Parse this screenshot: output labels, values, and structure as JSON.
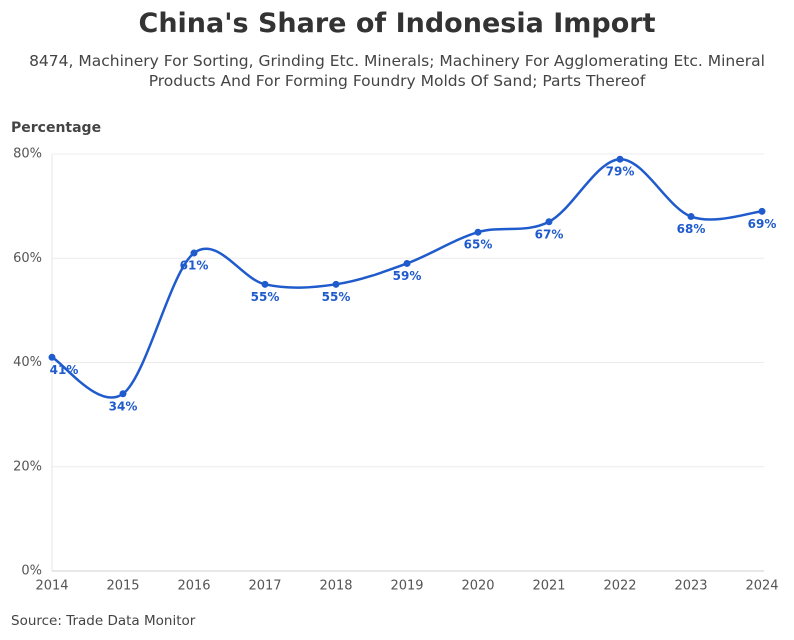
{
  "chart_data": {
    "type": "line",
    "title": "China's Share of Indonesia Import",
    "subtitle": "8474, Machinery For Sorting, Grinding Etc. Minerals; Machinery For Agglomerating Etc. Mineral Products And For Forming Foundry Molds Of Sand; Parts Thereof",
    "y_axis_label": "Percentage",
    "source": "Source: Trade Data Monitor",
    "x": [
      2014,
      2015,
      2016,
      2017,
      2018,
      2019,
      2020,
      2021,
      2022,
      2023,
      2024
    ],
    "xlim": [
      2014,
      2024
    ],
    "xticks": [
      2014,
      2015,
      2016,
      2017,
      2018,
      2019,
      2020,
      2021,
      2022,
      2023,
      2024
    ],
    "series": [
      {
        "name": "China",
        "color": "#1f5bcc",
        "values": [
          41,
          34,
          61,
          55,
          55,
          59,
          65,
          67,
          79,
          68,
          69
        ],
        "value_labels": [
          "41%",
          "34%",
          "61%",
          "55%",
          "55%",
          "59%",
          "65%",
          "67%",
          "79%",
          "68%",
          "69%"
        ]
      }
    ],
    "ylim": [
      0,
      80
    ],
    "yticks": [
      {
        "value": 0,
        "label": "0%"
      },
      {
        "value": 20,
        "label": "20%"
      },
      {
        "value": 40,
        "label": "40%"
      },
      {
        "value": 60,
        "label": "60%"
      },
      {
        "value": 80,
        "label": "80%"
      }
    ],
    "grid": true
  }
}
